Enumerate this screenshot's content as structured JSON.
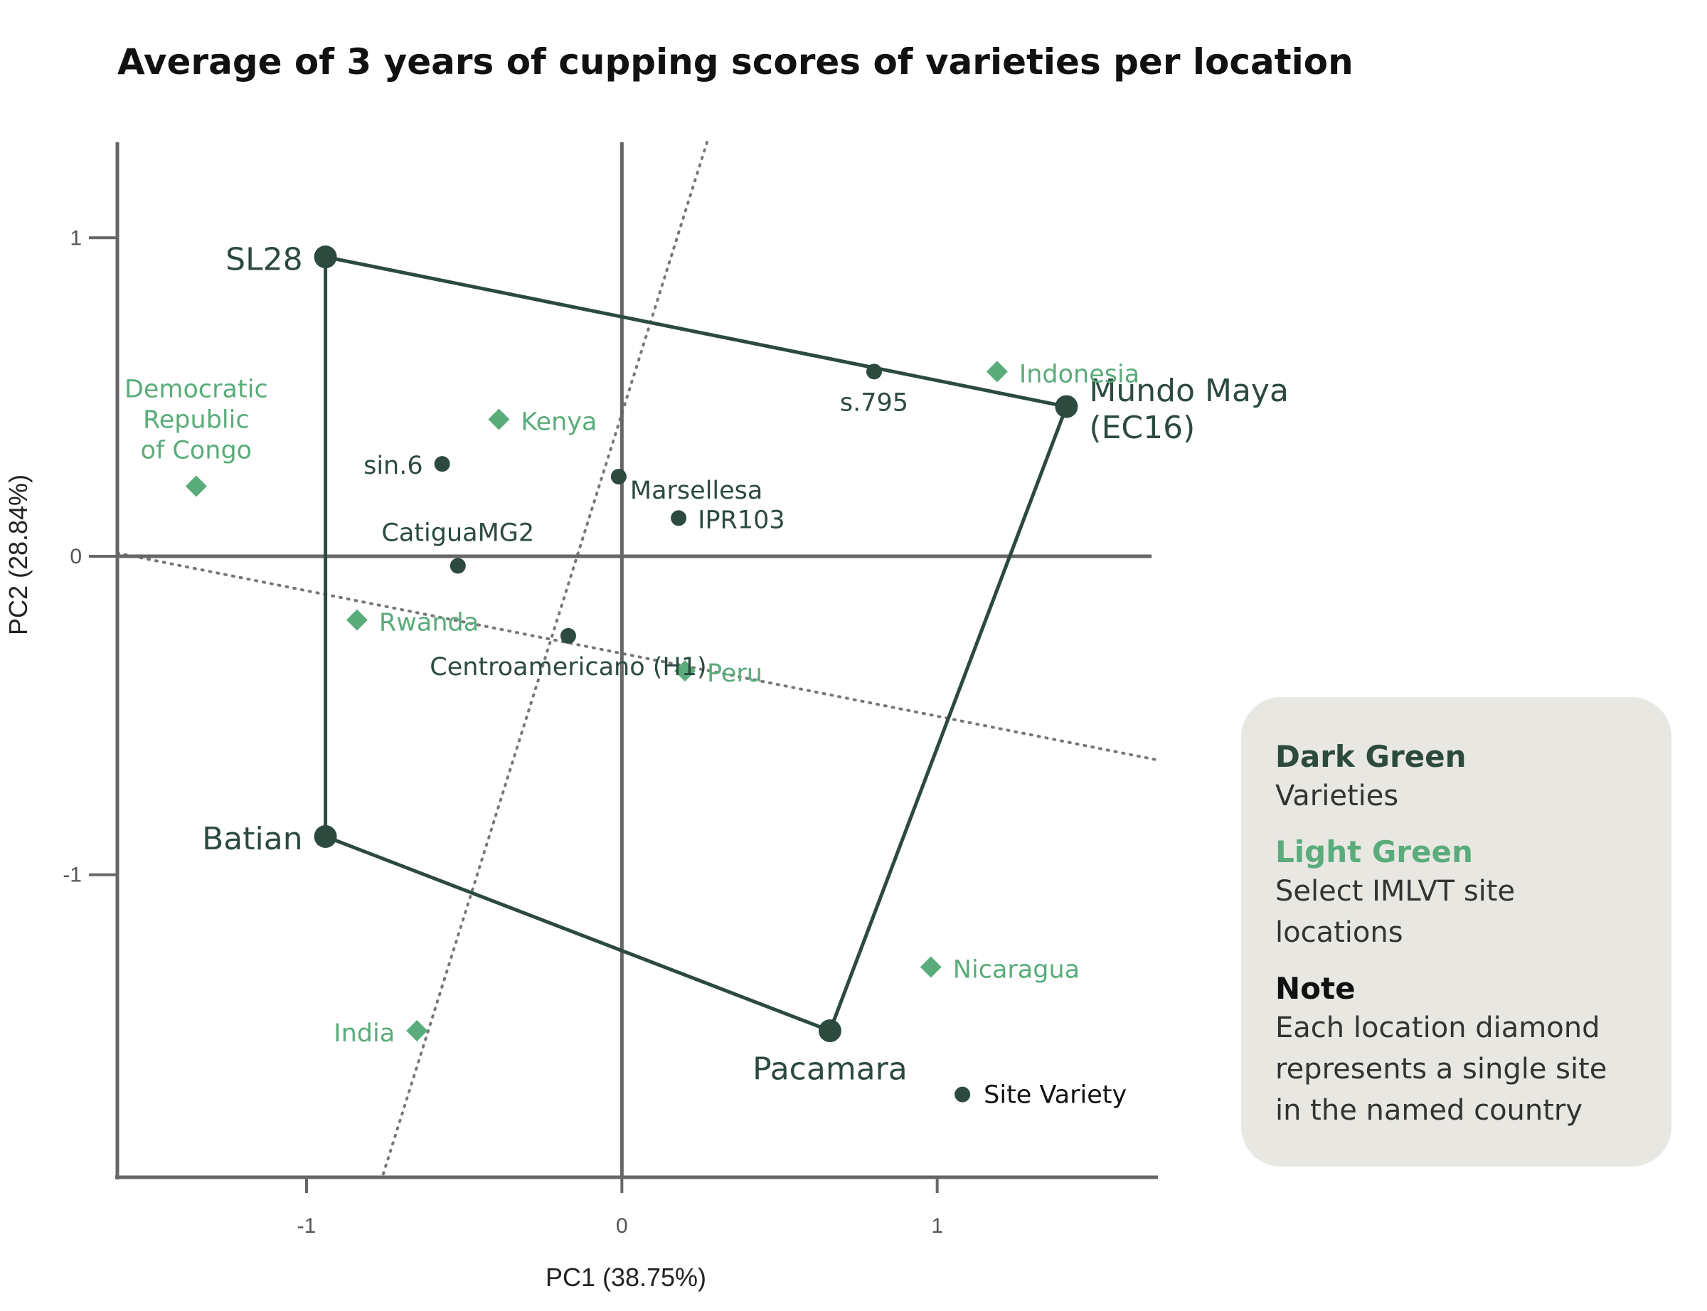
{
  "chart_data": {
    "type": "scatter",
    "title": "Average of 3 years of cupping scores of varieties per location",
    "xlabel": "PC1 (38.75%)",
    "ylabel": "PC2 (28.84%)",
    "xlim": [
      -1.6,
      1.7
    ],
    "ylim": [
      -1.95,
      1.3
    ],
    "xticks": [
      {
        "v": -1,
        "label": "-1"
      },
      {
        "v": 0,
        "label": "0"
      },
      {
        "v": 1,
        "label": "1"
      }
    ],
    "yticks": [
      {
        "v": 1,
        "label": "1"
      },
      {
        "v": 0,
        "label": "0"
      },
      {
        "v": -1,
        "label": "-1"
      }
    ],
    "hull": [
      "SL28",
      "Mundo Maya (EC16)",
      "Pacamara",
      "Batian"
    ],
    "dotted_lines": [
      {
        "x1": 0.27,
        "y1": 1.3,
        "x2": -0.76,
        "y2": -1.95
      },
      {
        "x1": -1.6,
        "y1": 0.01,
        "x2": 1.7,
        "y2": -0.64
      }
    ],
    "varieties": [
      {
        "name": "SL28",
        "x": -0.94,
        "y": 0.94,
        "vertex": true,
        "anchor": "left"
      },
      {
        "name": "Mundo Maya (EC16)",
        "lines": [
          "Mundo Maya",
          "(EC16)"
        ],
        "x": 1.41,
        "y": 0.47,
        "vertex": true,
        "anchor": "right"
      },
      {
        "name": "Pacamara",
        "x": 0.66,
        "y": -1.49,
        "vertex": true,
        "anchor": "below"
      },
      {
        "name": "Batian",
        "x": -0.94,
        "y": -0.88,
        "vertex": true,
        "anchor": "left"
      },
      {
        "name": "s.795",
        "x": 0.8,
        "y": 0.58,
        "vertex": false,
        "anchor": "below"
      },
      {
        "name": "sin.6",
        "x": -0.57,
        "y": 0.29,
        "vertex": false,
        "anchor": "left"
      },
      {
        "name": "Marsellesa",
        "x": -0.01,
        "y": 0.25,
        "vertex": false,
        "anchor": "below-right"
      },
      {
        "name": "IPR103",
        "x": 0.18,
        "y": 0.12,
        "vertex": false,
        "anchor": "right"
      },
      {
        "name": "CatiguaMG2",
        "x": -0.52,
        "y": -0.03,
        "vertex": false,
        "anchor": "above"
      },
      {
        "name": "Centroamericano (H1)",
        "x": -0.17,
        "y": -0.25,
        "vertex": false,
        "anchor": "below"
      }
    ],
    "locations": [
      {
        "name": "Democratic Republic of Congo",
        "lines": [
          "Democratic",
          "Republic",
          "of Congo"
        ],
        "x": -1.35,
        "y": 0.22,
        "anchor": "above"
      },
      {
        "name": "Kenya",
        "x": -0.39,
        "y": 0.43,
        "anchor": "right"
      },
      {
        "name": "Indonesia",
        "x": 1.19,
        "y": 0.58,
        "anchor": "right"
      },
      {
        "name": "Rwanda",
        "x": -0.84,
        "y": -0.2,
        "anchor": "right"
      },
      {
        "name": "Peru",
        "x": 0.2,
        "y": -0.36,
        "anchor": "right"
      },
      {
        "name": "Nicaragua",
        "x": 0.98,
        "y": -1.29,
        "anchor": "right"
      },
      {
        "name": "India",
        "x": -0.65,
        "y": -1.49,
        "anchor": "left"
      }
    ],
    "key_marker": {
      "label": "Site Variety",
      "x": 1.08,
      "y": -1.69
    }
  },
  "legend": {
    "dark_title": "Dark Green",
    "dark_text": "Varieties",
    "light_title": "Light Green",
    "light_text": "Select IMLVT site locations",
    "note_title": "Note",
    "note_text": "Each location diamond represents a single site in the named country"
  },
  "colors": {
    "variety": "#2c4a3e",
    "location": "#5aac7a",
    "axis": "#666666",
    "legend_bg": "#e8e7e2"
  }
}
